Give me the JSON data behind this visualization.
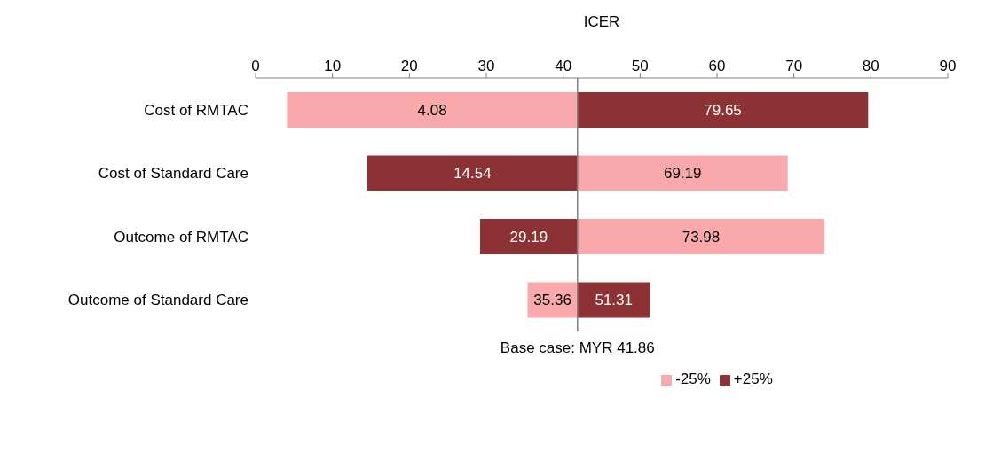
{
  "chart_data": {
    "type": "bar",
    "orientation": "horizontal",
    "xlabel": "ICER",
    "categories": [
      "Cost of RMTAC",
      "Cost of Standard Care",
      "Outcome of RMTAC",
      "Outcome of Standard Care"
    ],
    "series": [
      {
        "name": "-25%",
        "color": "#f9a9ab",
        "base": [
          41.86,
          41.86,
          41.86,
          41.86
        ],
        "values": [
          -37.78,
          27.33,
          32.12,
          -6.5
        ],
        "value_labels": [
          "4.08",
          "69.19",
          "73.98",
          "35.36"
        ]
      },
      {
        "name": "+25%",
        "color": "#8c3134",
        "base": [
          41.86,
          41.86,
          41.86,
          41.86
        ],
        "values": [
          37.79,
          -27.32,
          -12.67,
          9.45
        ],
        "value_labels": [
          "79.65",
          "14.54",
          "29.19",
          "51.31"
        ]
      }
    ],
    "xlim": [
      0,
      90
    ],
    "xticks": [
      0,
      10,
      20,
      30,
      40,
      50,
      60,
      70,
      80,
      90
    ],
    "ref_lines": [
      {
        "axis": "x",
        "value": 41.86,
        "label": "Base case: MYR 41.86",
        "color": "#808080"
      }
    ],
    "grid": false,
    "legend": "bottom"
  }
}
